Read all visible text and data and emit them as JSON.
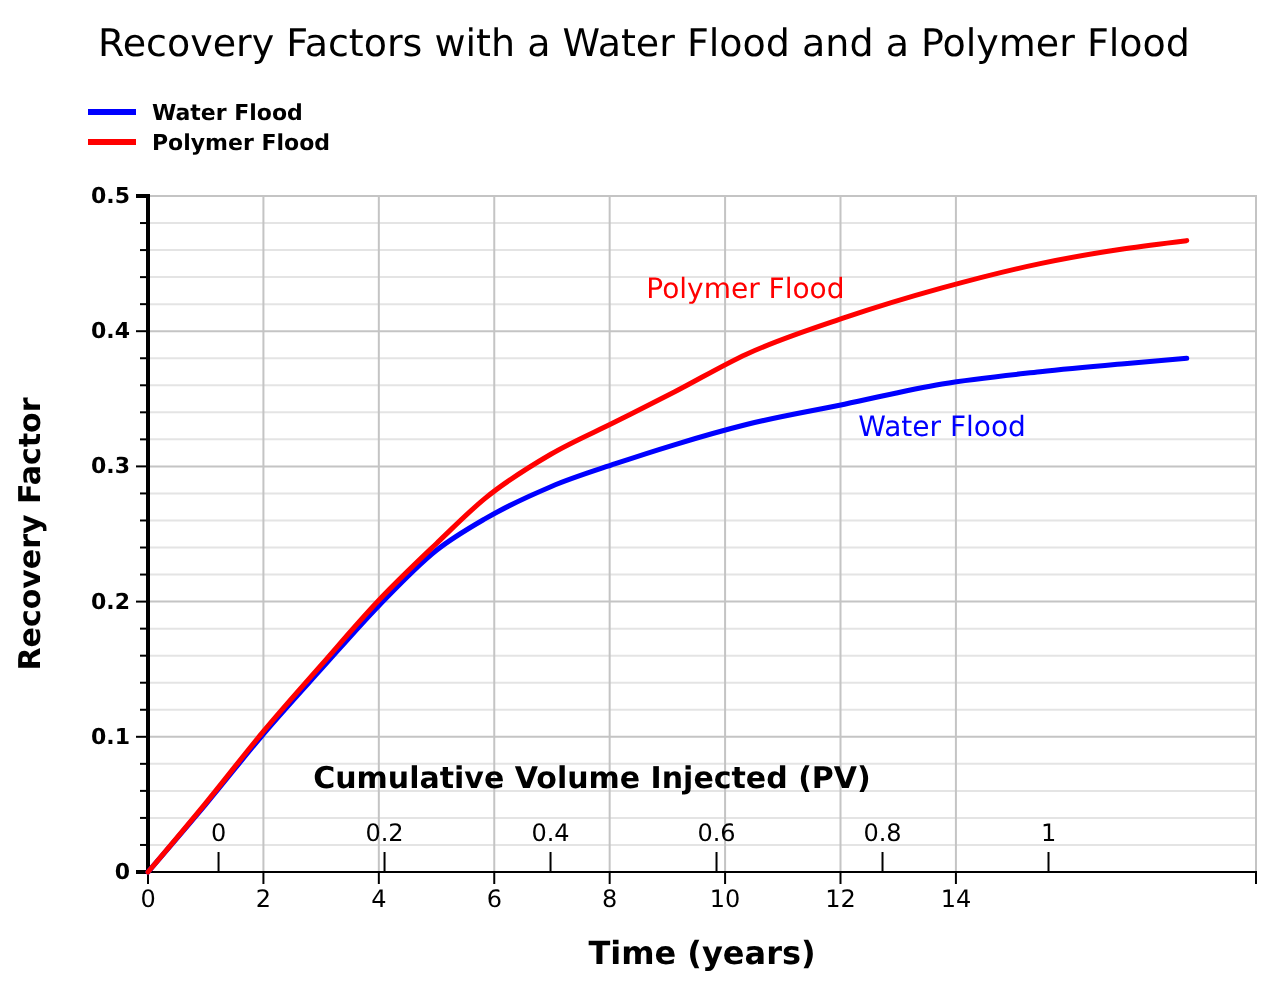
{
  "chart_data": {
    "type": "line",
    "title": "Recovery Factors with a Water Flood and a Polymer Flood",
    "xlabel": "Time (years)",
    "ylabel": "Recovery Factor",
    "x2label": "Cumulative Volume Injected (PV)",
    "xlim": [
      0,
      19.2
    ],
    "xticks": [
      0,
      2,
      4,
      6,
      8,
      10,
      12,
      14
    ],
    "x2lim": [
      -0.085,
      1.25
    ],
    "x2ticks": [
      0,
      0.2,
      0.4,
      0.6,
      0.8,
      1
    ],
    "ylim": [
      0,
      0.5
    ],
    "yticks": [
      0,
      {
        "value": 0.02,
        "label": null
      },
      {
        "value": 0.04,
        "label": null
      },
      {
        "value": 0.06,
        "label": null
      },
      {
        "value": 0.08,
        "label": null
      },
      0.1,
      {
        "value": 0.12,
        "label": null
      },
      {
        "value": 0.14,
        "label": null
      },
      {
        "value": 0.16,
        "label": null
      },
      {
        "value": 0.18,
        "label": null
      },
      0.2,
      {
        "value": 0.22,
        "label": null
      },
      {
        "value": 0.24,
        "label": null
      },
      {
        "value": 0.26,
        "label": null
      },
      {
        "value": 0.28,
        "label": null
      },
      0.3,
      {
        "value": 0.32,
        "label": null
      },
      {
        "value": 0.34,
        "label": null
      },
      {
        "value": 0.36,
        "label": null
      },
      {
        "value": 0.38,
        "label": null
      },
      0.4,
      {
        "value": 0.42,
        "label": null
      },
      {
        "value": 0.44,
        "label": null
      },
      {
        "value": 0.46,
        "label": null
      },
      {
        "value": 0.48,
        "label": null
      },
      0.5
    ],
    "grid": true,
    "legend": "top left",
    "line_style": "solid",
    "series": [
      {
        "name": "Water Flood",
        "color": "#0000ff",
        "x": [
          0,
          1,
          2,
          3,
          4,
          5,
          5.83,
          6.98,
          8.1,
          9.12,
          10.37,
          12.07,
          13.76,
          15.46,
          16.92,
          18.0
        ],
        "values": [
          0,
          0.05,
          0.102,
          0.15,
          0.197,
          0.238,
          0.261,
          0.285,
          0.302,
          0.316,
          0.331,
          0.346,
          0.361,
          0.37,
          0.376,
          0.38
        ]
      },
      {
        "name": "Polymer Flood",
        "color": "#ff0000",
        "x": [
          0,
          1,
          2,
          3,
          4,
          5,
          5.83,
          6.98,
          8.1,
          9.12,
          10.37,
          12.07,
          13.76,
          15.46,
          16.92,
          18.0
        ],
        "values": [
          0,
          0.051,
          0.104,
          0.153,
          0.201,
          0.243,
          0.276,
          0.309,
          0.333,
          0.355,
          0.383,
          0.41,
          0.432,
          0.45,
          0.461,
          0.467
        ]
      }
    ]
  }
}
